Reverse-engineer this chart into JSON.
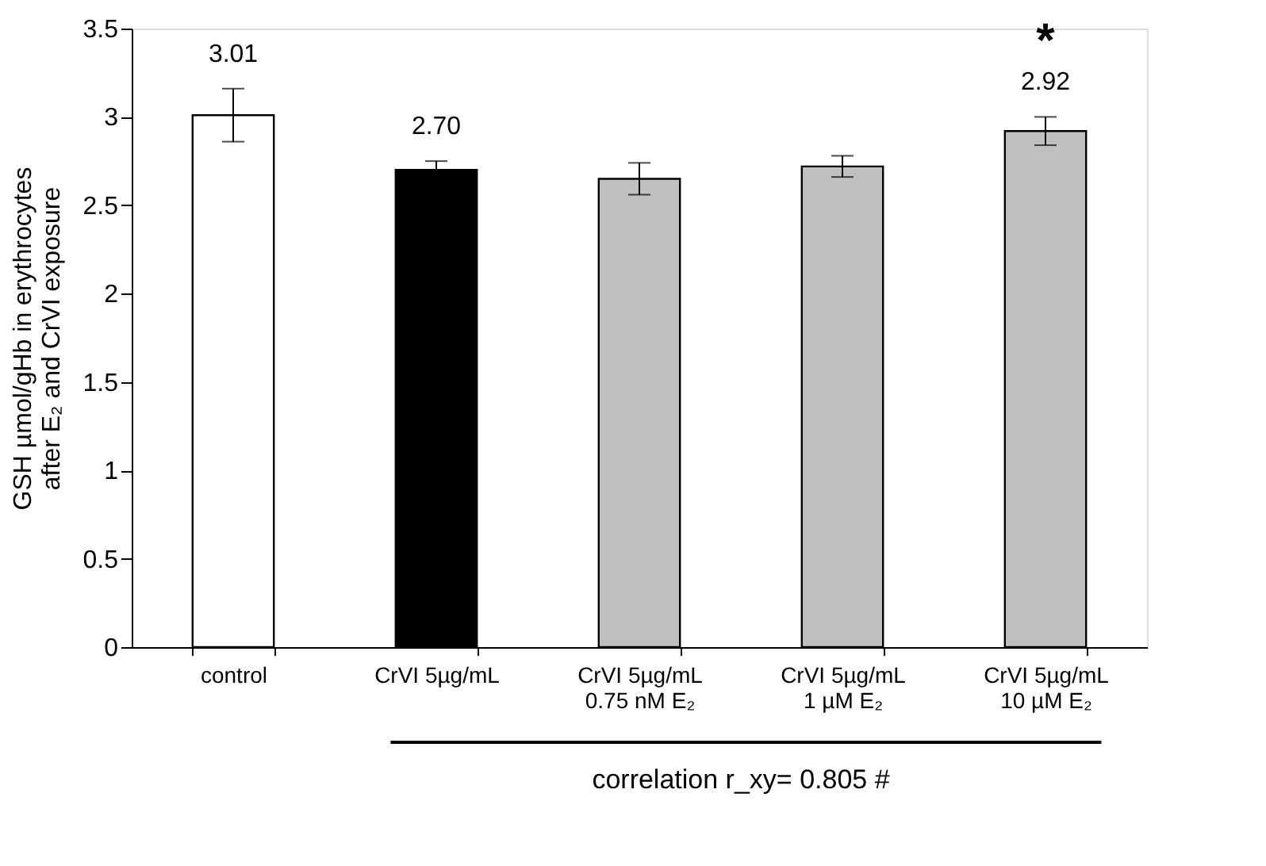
{
  "chart_data": {
    "type": "bar",
    "ylabel": "GSH µmol/gHb  in erythrocytes\nafter E₂ and CrVI exposure",
    "categories": [
      "control",
      "CrVI 5µg/mL",
      "CrVI 5µg/mL\n0.75 nM E₂",
      "CrVI 5µg/mL\n1 µM E₂",
      "CrVI 5µg/mL\n10 µM E₂"
    ],
    "values": [
      3.01,
      2.7,
      2.65,
      2.72,
      2.92
    ],
    "errors": [
      0.15,
      0.05,
      0.09,
      0.06,
      0.08
    ],
    "colors": [
      "#ffffff",
      "#000000",
      "#c0c0c0",
      "#c0c0c0",
      "#c0c0c0"
    ],
    "value_labels": [
      "3.01",
      "2.70",
      null,
      null,
      "2.92"
    ],
    "ylim": [
      0,
      3.5
    ],
    "yticks": [
      0,
      0.5,
      1,
      1.5,
      2,
      2.5,
      3,
      3.5
    ],
    "grid": false,
    "legend": false,
    "annotations": [
      "*",
      "correlation r_xy= 0.805 #"
    ]
  }
}
